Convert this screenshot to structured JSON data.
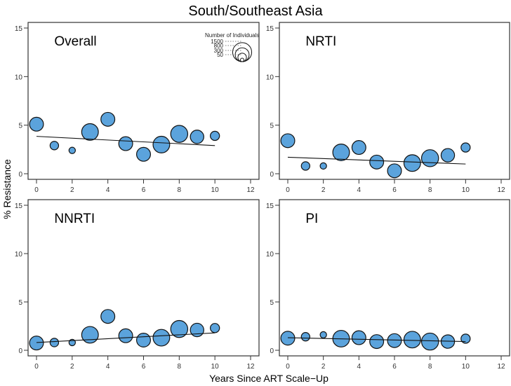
{
  "chart_data": {
    "type": "scatter",
    "title": "South/Southeast Asia",
    "xlabel": "Years Since ART Scale−Up",
    "ylabel": "% Resistance",
    "xlim": [
      0,
      12
    ],
    "ylim": [
      0,
      15
    ],
    "xticks": [
      "0",
      "2",
      "4",
      "6",
      "8",
      "10",
      "12"
    ],
    "yticks": [
      "0",
      "5",
      "10",
      "15"
    ],
    "grid": false,
    "marker_color": "#5BA3DC",
    "legend": {
      "title": "Number of Individuals",
      "placement": "top-right of first panel",
      "entries": [
        {
          "label": "1500",
          "n": 1500
        },
        {
          "label": "800",
          "n": 800
        },
        {
          "label": "300",
          "n": 300
        },
        {
          "label": "50",
          "n": 50
        }
      ]
    },
    "panels": [
      {
        "name": "Overall",
        "x": [
          0,
          1,
          2,
          3,
          4,
          5,
          6,
          7,
          8,
          9,
          10
        ],
        "y": [
          5.1,
          2.9,
          2.4,
          4.3,
          5.6,
          3.1,
          2.0,
          3.0,
          4.1,
          3.8,
          3.9
        ],
        "n": [
          800,
          300,
          170,
          1150,
          800,
          800,
          800,
          1150,
          1200,
          750,
          350
        ],
        "trend": {
          "x0": 0,
          "y0": 3.85,
          "x1": 10,
          "y1": 2.9
        }
      },
      {
        "name": "NRTI",
        "x": [
          0,
          1,
          2,
          3,
          4,
          5,
          6,
          7,
          8,
          9,
          10
        ],
        "y": [
          3.4,
          0.8,
          0.8,
          2.2,
          2.7,
          1.2,
          0.3,
          1.1,
          1.6,
          1.9,
          2.7
        ],
        "n": [
          800,
          300,
          170,
          1150,
          800,
          800,
          800,
          1150,
          1200,
          750,
          350
        ],
        "trend": {
          "x0": 0,
          "y0": 1.7,
          "x1": 10,
          "y1": 1.0
        }
      },
      {
        "name": "NNRTI",
        "x": [
          0,
          1,
          2,
          3,
          4,
          5,
          6,
          7,
          8,
          9,
          10
        ],
        "y": [
          0.75,
          0.8,
          0.8,
          1.6,
          3.5,
          1.5,
          1.05,
          1.3,
          2.2,
          2.1,
          2.3
        ],
        "n": [
          800,
          300,
          170,
          1150,
          800,
          800,
          800,
          1150,
          1200,
          750,
          350
        ],
        "trend": {
          "x0": 0,
          "y0": 0.8,
          "x1": 10,
          "y1": 1.8
        }
      },
      {
        "name": "PI",
        "x": [
          0,
          1,
          2,
          3,
          4,
          5,
          6,
          7,
          8,
          9,
          10
        ],
        "y": [
          1.25,
          1.4,
          1.6,
          1.2,
          1.3,
          0.9,
          1.0,
          1.1,
          0.9,
          0.9,
          1.2
        ],
        "n": [
          800,
          300,
          170,
          1150,
          800,
          800,
          800,
          1150,
          1200,
          750,
          350
        ],
        "trend": {
          "x0": 0,
          "y0": 1.3,
          "x1": 10,
          "y1": 0.9
        }
      }
    ]
  }
}
